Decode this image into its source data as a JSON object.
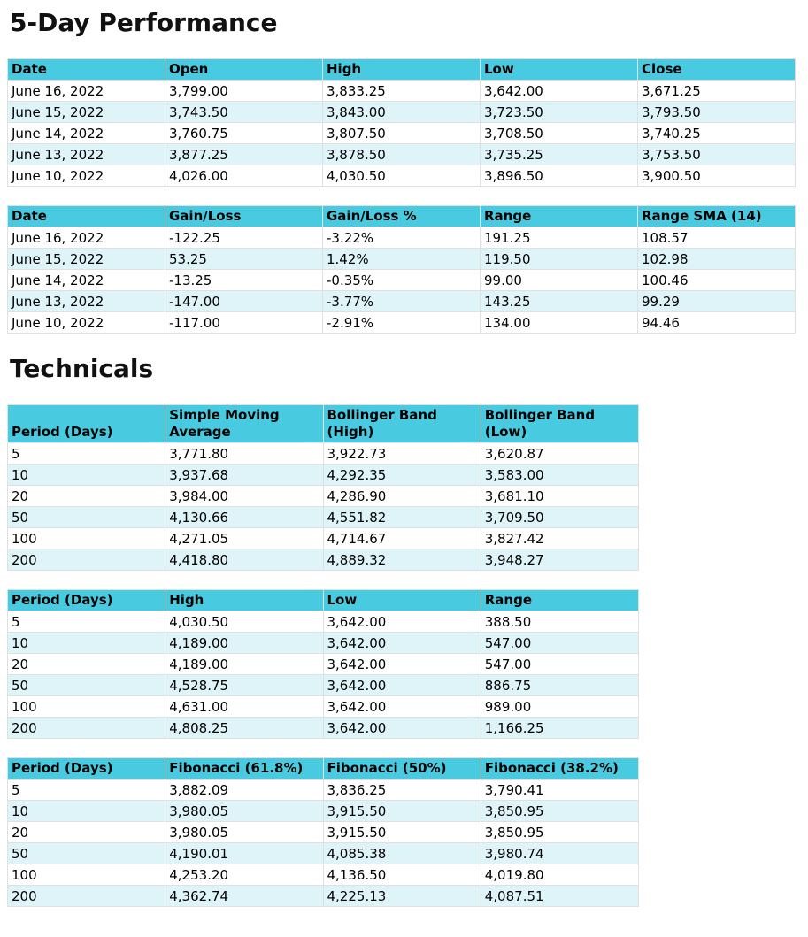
{
  "page": {
    "heading_performance": "5-Day Performance",
    "heading_technicals": "Technicals"
  },
  "colors": {
    "header_bg": "#48cbe0",
    "row_alt_bg": "#dff4f9",
    "border": "#e0e0e0",
    "text": "#000000"
  },
  "tables": {
    "ohlc": {
      "columns": [
        "Date",
        "Open",
        "High",
        "Low",
        "Close"
      ],
      "rows": [
        [
          "June 16, 2022",
          "3,799.00",
          "3,833.25",
          "3,642.00",
          "3,671.25"
        ],
        [
          "June 15, 2022",
          "3,743.50",
          "3,843.00",
          "3,723.50",
          "3,793.50"
        ],
        [
          "June 14, 2022",
          "3,760.75",
          "3,807.50",
          "3,708.50",
          "3,740.25"
        ],
        [
          "June 13, 2022",
          "3,877.25",
          "3,878.50",
          "3,735.25",
          "3,753.50"
        ],
        [
          "June 10, 2022",
          "4,026.00",
          "4,030.50",
          "3,896.50",
          "3,900.50"
        ]
      ]
    },
    "gainloss": {
      "columns": [
        "Date",
        "Gain/Loss",
        "Gain/Loss %",
        "Range",
        "Range SMA (14)"
      ],
      "rows": [
        [
          "June 16, 2022",
          "-122.25",
          "-3.22%",
          "191.25",
          "108.57"
        ],
        [
          "June 15, 2022",
          "53.25",
          "1.42%",
          "119.50",
          "102.98"
        ],
        [
          "June 14, 2022",
          "-13.25",
          "-0.35%",
          "99.00",
          "100.46"
        ],
        [
          "June 13, 2022",
          "-147.00",
          "-3.77%",
          "143.25",
          "99.29"
        ],
        [
          "June 10, 2022",
          "-117.00",
          "-2.91%",
          "134.00",
          "94.46"
        ]
      ]
    },
    "sma_bollinger": {
      "columns": [
        "Period (Days)",
        "Simple Moving Average",
        "Bollinger Band (High)",
        "Bollinger Band (Low)"
      ],
      "rows": [
        [
          "5",
          "3,771.80",
          "3,922.73",
          "3,620.87"
        ],
        [
          "10",
          "3,937.68",
          "4,292.35",
          "3,583.00"
        ],
        [
          "20",
          "3,984.00",
          "4,286.90",
          "3,681.10"
        ],
        [
          "50",
          "4,130.66",
          "4,551.82",
          "3,709.50"
        ],
        [
          "100",
          "4,271.05",
          "4,714.67",
          "3,827.42"
        ],
        [
          "200",
          "4,418.80",
          "4,889.32",
          "3,948.27"
        ]
      ]
    },
    "high_low_range": {
      "columns": [
        "Period (Days)",
        "High",
        "Low",
        "Range"
      ],
      "rows": [
        [
          "5",
          "4,030.50",
          "3,642.00",
          "388.50"
        ],
        [
          "10",
          "4,189.00",
          "3,642.00",
          "547.00"
        ],
        [
          "20",
          "4,189.00",
          "3,642.00",
          "547.00"
        ],
        [
          "50",
          "4,528.75",
          "3,642.00",
          "886.75"
        ],
        [
          "100",
          "4,631.00",
          "3,642.00",
          "989.00"
        ],
        [
          "200",
          "4,808.25",
          "3,642.00",
          "1,166.25"
        ]
      ]
    },
    "fibonacci": {
      "columns": [
        "Period (Days)",
        "Fibonacci (61.8%)",
        "Fibonacci (50%)",
        "Fibonacci (38.2%)"
      ],
      "rows": [
        [
          "5",
          "3,882.09",
          "3,836.25",
          "3,790.41"
        ],
        [
          "10",
          "3,980.05",
          "3,915.50",
          "3,850.95"
        ],
        [
          "20",
          "3,980.05",
          "3,915.50",
          "3,850.95"
        ],
        [
          "50",
          "4,190.01",
          "4,085.38",
          "3,980.74"
        ],
        [
          "100",
          "4,253.20",
          "4,136.50",
          "4,019.80"
        ],
        [
          "200",
          "4,362.74",
          "4,225.13",
          "4,087.51"
        ]
      ]
    }
  }
}
